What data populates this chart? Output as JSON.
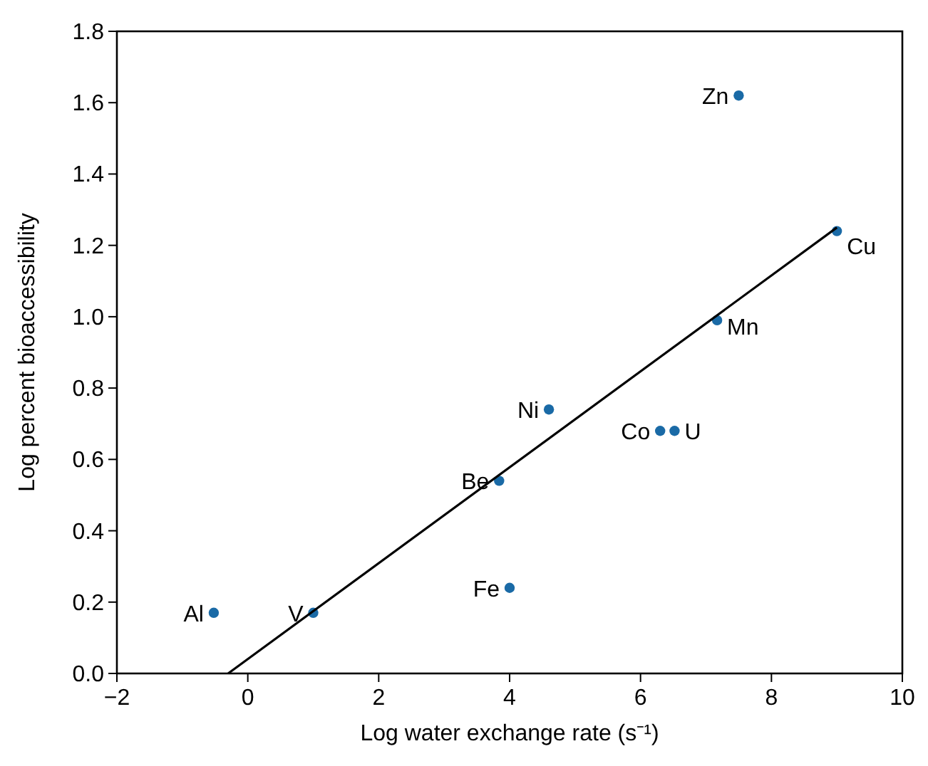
{
  "chart_data": {
    "type": "scatter",
    "xlabel": "Log water exchange rate (s⁻¹)",
    "ylabel": "Log percent bioaccessibility",
    "xlim": [
      -2,
      10
    ],
    "ylim": [
      0,
      1.8
    ],
    "xticks": [
      {
        "value": -2,
        "label": "−2"
      },
      0,
      2,
      4,
      6,
      8,
      10
    ],
    "yticks": [
      {
        "value": 0,
        "label": "0.0"
      },
      {
        "value": 0.2,
        "label": "0.2"
      },
      {
        "value": 0.4,
        "label": "0.4"
      },
      {
        "value": 0.6,
        "label": "0.6"
      },
      {
        "value": 0.8,
        "label": "0.8"
      },
      {
        "value": 1,
        "label": "1.0"
      },
      {
        "value": 1.2,
        "label": "1.2"
      },
      {
        "value": 1.4,
        "label": "1.4"
      },
      {
        "value": 1.6,
        "label": "1.6"
      },
      {
        "value": 1.8,
        "label": "1.8"
      }
    ],
    "grid": false,
    "marker": "circle",
    "series": [
      {
        "color": "#1a6aa6",
        "x": [
          -0.52,
          1.0,
          4.0,
          3.84,
          4.6,
          6.3,
          6.52,
          7.17,
          7.5,
          9.0
        ],
        "values": [
          0.17,
          0.17,
          0.24,
          0.54,
          0.74,
          0.68,
          0.68,
          0.99,
          1.62,
          1.24
        ]
      },
      {
        "type": "line",
        "color": "#000000",
        "line_style": "solid",
        "marker": "none",
        "x": [
          -0.3,
          9.0
        ],
        "values": [
          0,
          1.25
        ]
      }
    ],
    "annotations": [
      {
        "text": "Al",
        "x": -0.52,
        "y": 0.17
      },
      {
        "text": "V",
        "x": 1.0,
        "y": 0.17
      },
      {
        "text": "Fe",
        "x": 4.0,
        "y": 0.24
      },
      {
        "text": "Be",
        "x": 3.84,
        "y": 0.54
      },
      {
        "text": "Ni",
        "x": 4.6,
        "y": 0.74
      },
      {
        "text": "Co",
        "x": 6.3,
        "y": 0.68
      },
      {
        "text": "U",
        "x": 6.52,
        "y": 0.68
      },
      {
        "text": "Mn",
        "x": 7.17,
        "y": 0.99
      },
      {
        "text": "Zn",
        "x": 7.5,
        "y": 1.62
      },
      {
        "text": "Cu",
        "x": 9.0,
        "y": 1.24
      }
    ]
  }
}
